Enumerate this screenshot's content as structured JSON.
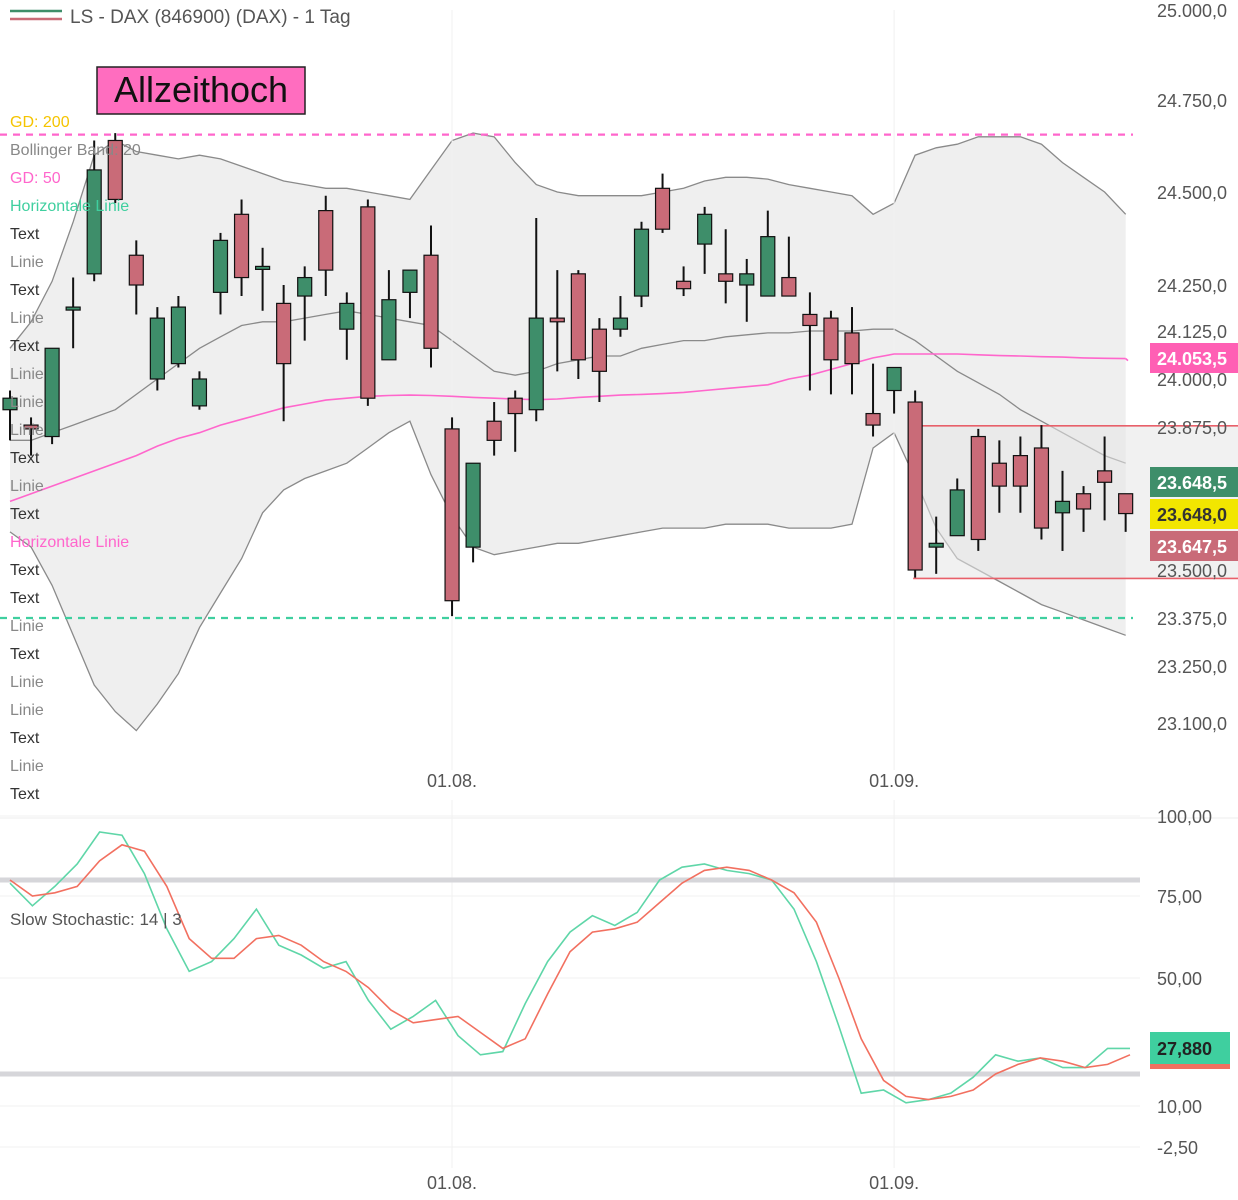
{
  "header": {
    "title": "LS - DAX (846900) (DAX) - 1 Tag"
  },
  "annotation": {
    "label": "Allzeithoch"
  },
  "legend_items": [
    {
      "label": "GD: 200",
      "color": "#f5c400"
    },
    {
      "label": "Bollinger Band: 20",
      "color": "#888888"
    },
    {
      "label": "GD: 50",
      "color": "#ff66cc"
    },
    {
      "label": "Horizontale Linie",
      "color": "#3fcf9f"
    },
    {
      "label": "Text",
      "color": "#333333"
    },
    {
      "label": "Linie",
      "color": "#888888"
    },
    {
      "label": "Text",
      "color": "#333333"
    },
    {
      "label": "Linie",
      "color": "#888888"
    },
    {
      "label": "Text",
      "color": "#333333"
    },
    {
      "label": "Linie",
      "color": "#888888"
    },
    {
      "label": "Linie",
      "color": "#888888"
    },
    {
      "label": "Linie",
      "color": "#888888"
    },
    {
      "label": "Text",
      "color": "#333333"
    },
    {
      "label": "Linie",
      "color": "#888888"
    },
    {
      "label": "Text",
      "color": "#333333"
    },
    {
      "label": "Horizontale Linie",
      "color": "#ff66cc"
    },
    {
      "label": "Text",
      "color": "#333333"
    },
    {
      "label": "Text",
      "color": "#333333"
    },
    {
      "label": "Linie",
      "color": "#888888"
    },
    {
      "label": "Text",
      "color": "#333333"
    },
    {
      "label": "Linie",
      "color": "#888888"
    },
    {
      "label": "Linie",
      "color": "#888888"
    },
    {
      "label": "Text",
      "color": "#333333"
    },
    {
      "label": "Linie",
      "color": "#888888"
    },
    {
      "label": "Text",
      "color": "#333333"
    }
  ],
  "price_tags": [
    {
      "value": 24053.5,
      "label": "24.053,5",
      "bg": "#ff5fb4",
      "fg": "#ffffff"
    },
    {
      "value": 23648.5,
      "label": "23.648,5",
      "bg": "#3e8e6a",
      "fg": "#ffffff"
    },
    {
      "value": 23648.0,
      "label": "23.648,0",
      "bg": "#f2e600",
      "fg": "#333333"
    },
    {
      "value": 23647.5,
      "label": "23.647,5",
      "bg": "#c96b78",
      "fg": "#ffffff"
    }
  ],
  "stoch_tag": {
    "label": "27,880",
    "bg": "#3fcf9f",
    "fg": "#222222"
  },
  "colors": {
    "up": "#3e8e6a",
    "down": "#c96b78",
    "ma50": "#ff66cc",
    "stoch_k": "#5fd6a8",
    "stoch_d": "#f27060",
    "band_fill": "#e9e9e9",
    "band_line": "#8a8a8a"
  },
  "chart_data": [
    {
      "type": "candlestick",
      "title": "LS - DAX (846900) (DAX) - 1 Tag",
      "y_ticks": [
        {
          "value": 25000,
          "label": "25.000,0"
        },
        {
          "value": 24750,
          "label": "24.750,0"
        },
        {
          "value": 24500,
          "label": "24.500,0"
        },
        {
          "value": 24250,
          "label": "24.250,0"
        },
        {
          "value": 24125,
          "label": "24.125,0"
        },
        {
          "value": 24000,
          "label": "24.000,0"
        },
        {
          "value": 23875,
          "label": "23.875,0"
        },
        {
          "value": 23500,
          "label": "23.500,0"
        },
        {
          "value": 23375,
          "label": "23.375,0"
        },
        {
          "value": 23250,
          "label": "23.250,0"
        },
        {
          "value": 23100,
          "label": "23.100,0"
        }
      ],
      "x_ticks": [
        {
          "index": 21,
          "label": "01.08."
        },
        {
          "index": 42,
          "label": "01.09."
        }
      ],
      "ylim": [
        23000,
        25040
      ],
      "horizontal_lines": [
        {
          "value": 24656,
          "color": "#ff66cc",
          "style": "dashed"
        },
        {
          "value": 23375,
          "color": "#3fcf9f",
          "style": "dashed"
        }
      ],
      "range_box": {
        "from_index": 43,
        "to_index": 53,
        "high": 23878,
        "low": 23478,
        "color": "#e8606a"
      },
      "candles": [
        {
          "o": 23920,
          "h": 23970,
          "l": 23840,
          "c": 23950
        },
        {
          "o": 23880,
          "h": 23900,
          "l": 23800,
          "c": 23870
        },
        {
          "o": 23850,
          "h": 24080,
          "l": 23830,
          "c": 24080
        },
        {
          "o": 24190,
          "h": 24270,
          "l": 24080,
          "c": 24190
        },
        {
          "o": 24280,
          "h": 24640,
          "l": 24260,
          "c": 24560
        },
        {
          "o": 24640,
          "h": 24660,
          "l": 24470,
          "c": 24480
        },
        {
          "o": 24330,
          "h": 24370,
          "l": 24170,
          "c": 24250
        },
        {
          "o": 24000,
          "h": 24190,
          "l": 23970,
          "c": 24160
        },
        {
          "o": 24040,
          "h": 24220,
          "l": 24030,
          "c": 24190
        },
        {
          "o": 23930,
          "h": 24020,
          "l": 23920,
          "c": 24000
        },
        {
          "o": 24230,
          "h": 24390,
          "l": 24170,
          "c": 24370
        },
        {
          "o": 24440,
          "h": 24480,
          "l": 24220,
          "c": 24270
        },
        {
          "o": 24300,
          "h": 24350,
          "l": 24180,
          "c": 24300
        },
        {
          "o": 24200,
          "h": 24250,
          "l": 23890,
          "c": 24040
        },
        {
          "o": 24220,
          "h": 24300,
          "l": 24100,
          "c": 24270
        },
        {
          "o": 24450,
          "h": 24490,
          "l": 24220,
          "c": 24290
        },
        {
          "o": 24130,
          "h": 24230,
          "l": 24050,
          "c": 24200
        },
        {
          "o": 24460,
          "h": 24480,
          "l": 23930,
          "c": 23950
        },
        {
          "o": 24050,
          "h": 24290,
          "l": 24050,
          "c": 24210
        },
        {
          "o": 24230,
          "h": 24280,
          "l": 24160,
          "c": 24290
        },
        {
          "o": 24330,
          "h": 24410,
          "l": 24030,
          "c": 24080
        },
        {
          "o": 23870,
          "h": 23900,
          "l": 23380,
          "c": 23420
        },
        {
          "o": 23560,
          "h": 23780,
          "l": 23520,
          "c": 23780
        },
        {
          "o": 23890,
          "h": 23940,
          "l": 23800,
          "c": 23840
        },
        {
          "o": 23950,
          "h": 23970,
          "l": 23810,
          "c": 23910
        },
        {
          "o": 23920,
          "h": 24430,
          "l": 23890,
          "c": 24160
        },
        {
          "o": 24160,
          "h": 24290,
          "l": 24020,
          "c": 24150
        },
        {
          "o": 24280,
          "h": 24290,
          "l": 24000,
          "c": 24050
        },
        {
          "o": 24130,
          "h": 24160,
          "l": 23940,
          "c": 24020
        },
        {
          "o": 24130,
          "h": 24220,
          "l": 24110,
          "c": 24160
        },
        {
          "o": 24220,
          "h": 24420,
          "l": 24190,
          "c": 24400
        },
        {
          "o": 24510,
          "h": 24550,
          "l": 24390,
          "c": 24400
        },
        {
          "o": 24260,
          "h": 24300,
          "l": 24220,
          "c": 24240
        },
        {
          "o": 24360,
          "h": 24460,
          "l": 24280,
          "c": 24440
        },
        {
          "o": 24280,
          "h": 24400,
          "l": 24200,
          "c": 24260
        },
        {
          "o": 24250,
          "h": 24320,
          "l": 24150,
          "c": 24280
        },
        {
          "o": 24220,
          "h": 24450,
          "l": 24220,
          "c": 24380
        },
        {
          "o": 24270,
          "h": 24380,
          "l": 24220,
          "c": 24220
        },
        {
          "o": 24170,
          "h": 24230,
          "l": 23970,
          "c": 24140
        },
        {
          "o": 24160,
          "h": 24180,
          "l": 23960,
          "c": 24050
        },
        {
          "o": 24120,
          "h": 24190,
          "l": 23960,
          "c": 24040
        },
        {
          "o": 23910,
          "h": 24040,
          "l": 23850,
          "c": 23880
        },
        {
          "o": 23970,
          "h": 24030,
          "l": 23910,
          "c": 24030
        },
        {
          "o": 23940,
          "h": 23970,
          "l": 23480,
          "c": 23500
        },
        {
          "o": 23560,
          "h": 23640,
          "l": 23490,
          "c": 23570
        },
        {
          "o": 23590,
          "h": 23740,
          "l": 23590,
          "c": 23710
        },
        {
          "o": 23850,
          "h": 23870,
          "l": 23550,
          "c": 23580
        },
        {
          "o": 23780,
          "h": 23840,
          "l": 23650,
          "c": 23720
        },
        {
          "o": 23800,
          "h": 23850,
          "l": 23650,
          "c": 23720
        },
        {
          "o": 23820,
          "h": 23880,
          "l": 23580,
          "c": 23610
        },
        {
          "o": 23650,
          "h": 23760,
          "l": 23550,
          "c": 23680
        },
        {
          "o": 23700,
          "h": 23720,
          "l": 23600,
          "c": 23660
        },
        {
          "o": 23760,
          "h": 23850,
          "l": 23630,
          "c": 23730
        },
        {
          "o": 23700,
          "h": 23700,
          "l": 23600,
          "c": 23648
        }
      ],
      "ma50": [
        23680,
        23700,
        23720,
        23740,
        23760,
        23780,
        23800,
        23825,
        23845,
        23860,
        23880,
        23895,
        23910,
        23925,
        23935,
        23945,
        23950,
        23955,
        23957,
        23958,
        23957,
        23955,
        23952,
        23950,
        23948,
        23946,
        23948,
        23952,
        23955,
        23958,
        23960,
        23962,
        23965,
        23970,
        23975,
        23980,
        23985,
        24000,
        24010,
        24025,
        24040,
        24055,
        24065,
        24065,
        24065,
        24065,
        24063,
        24061,
        24060,
        24058,
        24057,
        24055,
        24054,
        24053
      ],
      "bollinger_upper": [
        24080,
        24150,
        24260,
        24420,
        24600,
        24640,
        24610,
        24600,
        24590,
        24600,
        24590,
        24570,
        24550,
        24530,
        24520,
        24510,
        24510,
        24500,
        24490,
        24480,
        24560,
        24640,
        24660,
        24650,
        24580,
        24520,
        24500,
        24490,
        24490,
        24490,
        24490,
        24500,
        24510,
        24530,
        24540,
        24540,
        24535,
        24520,
        24510,
        24500,
        24490,
        24440,
        24470,
        24600,
        24620,
        24630,
        24650,
        24650,
        24650,
        24630,
        24580,
        24540,
        24500,
        24440
      ],
      "bollinger_mid": [
        23840,
        23840,
        23860,
        23880,
        23900,
        23920,
        23960,
        24000,
        24040,
        24080,
        24110,
        24140,
        24150,
        24150,
        24160,
        24170,
        24180,
        24170,
        24160,
        24150,
        24140,
        24100,
        24060,
        24020,
        24010,
        24020,
        24040,
        24050,
        24060,
        24060,
        24080,
        24090,
        24100,
        24100,
        24110,
        24115,
        24120,
        24120,
        24125,
        24125,
        24125,
        24130,
        24130,
        24100,
        24060,
        24020,
        23990,
        23960,
        23920,
        23890,
        23860,
        23830,
        23800,
        23780
      ],
      "bollinger_lower": [
        23600,
        23560,
        23460,
        23330,
        23200,
        23130,
        23080,
        23150,
        23230,
        23350,
        23440,
        23530,
        23650,
        23710,
        23740,
        23760,
        23780,
        23820,
        23860,
        23890,
        23750,
        23640,
        23560,
        23540,
        23550,
        23560,
        23570,
        23570,
        23580,
        23590,
        23600,
        23610,
        23610,
        23610,
        23620,
        23620,
        23620,
        23610,
        23610,
        23610,
        23620,
        23820,
        23860,
        23740,
        23610,
        23530,
        23500,
        23470,
        23440,
        23410,
        23390,
        23370,
        23350,
        23330
      ]
    },
    {
      "type": "line",
      "title": "Slow Stochastic: 14 | 3",
      "ylim": [
        -8,
        105
      ],
      "y_ticks": [
        {
          "value": 100,
          "label": "100,00"
        },
        {
          "value": 75,
          "label": "75,00"
        },
        {
          "value": 50,
          "label": "50,00"
        },
        {
          "value": 10,
          "label": "10,00"
        },
        {
          "value": -2.5,
          "label": "-2,50"
        }
      ],
      "x_ticks": [
        {
          "index": 21,
          "label": "01.08."
        },
        {
          "index": 42,
          "label": "01.09."
        }
      ],
      "reference_lines": [
        80,
        20
      ],
      "series": [
        {
          "color": "#5fd6a8",
          "values": [
            79,
            72,
            78,
            85,
            95,
            94,
            82,
            65,
            52,
            55,
            62,
            71,
            60,
            57,
            53,
            55,
            43,
            34,
            38,
            43,
            32,
            26,
            27,
            42,
            55,
            64,
            69,
            66,
            70,
            80,
            84,
            85,
            83,
            82,
            80,
            71,
            55,
            35,
            14,
            15,
            11,
            12,
            14,
            19,
            26,
            24,
            25,
            22,
            22,
            28,
            28
          ]
        },
        {
          "color": "#f27060",
          "values": [
            80,
            75,
            76,
            78,
            86,
            91,
            89,
            78,
            62,
            56,
            56,
            62,
            63,
            60,
            55,
            52,
            47,
            40,
            36,
            37,
            38,
            33,
            28,
            31,
            45,
            58,
            64,
            65,
            67,
            73,
            79,
            83,
            84,
            83,
            80,
            76,
            67,
            50,
            31,
            18,
            13,
            12,
            13,
            15,
            20,
            23,
            25,
            24,
            22,
            23,
            26
          ]
        }
      ]
    }
  ]
}
